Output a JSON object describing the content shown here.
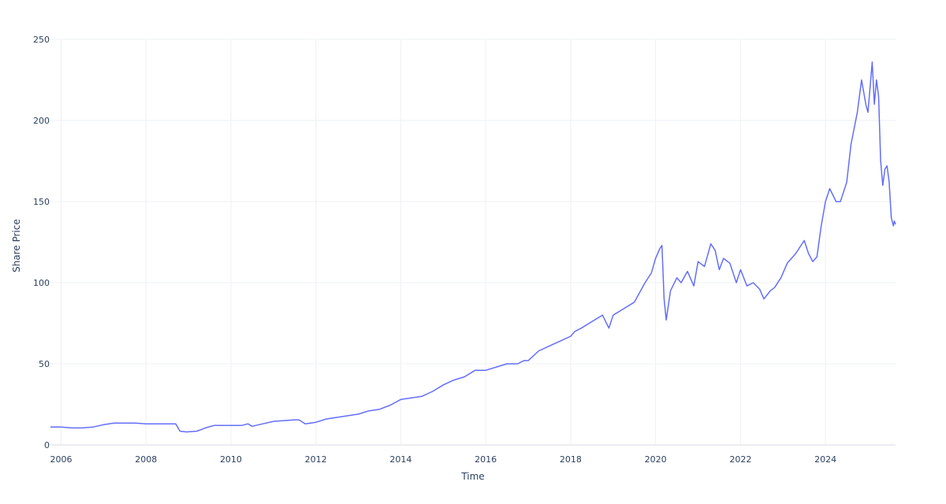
{
  "chart_data": {
    "type": "line",
    "title": "",
    "xlabel": "Time",
    "ylabel": "Share Price",
    "xlim": [
      2005.75,
      2025.65
    ],
    "ylim": [
      0,
      250
    ],
    "grid": true,
    "x_ticks": [
      2006,
      2008,
      2010,
      2012,
      2014,
      2016,
      2018,
      2020,
      2022,
      2024
    ],
    "x_tick_labels": [
      "2006",
      "2008",
      "2010",
      "2012",
      "2014",
      "2016",
      "2018",
      "2020",
      "2022",
      "2024"
    ],
    "y_ticks": [
      0,
      50,
      100,
      150,
      200,
      250
    ],
    "y_tick_labels": [
      "0",
      "50",
      "100",
      "150",
      "200",
      "250"
    ],
    "line_color": "#636efa",
    "series": [
      {
        "x": [
          2005.75,
          2006.0,
          2006.25,
          2006.5,
          2006.75,
          2007.0,
          2007.25,
          2007.5,
          2007.75,
          2008.0,
          2008.25,
          2008.5,
          2008.7,
          2008.8,
          2008.95,
          2009.2,
          2009.4,
          2009.6,
          2009.8,
          2010.0,
          2010.25,
          2010.4,
          2010.5,
          2010.75,
          2011.0,
          2011.25,
          2011.5,
          2011.6,
          2011.75,
          2012.0,
          2012.25,
          2012.5,
          2012.75,
          2013.0,
          2013.25,
          2013.5,
          2013.75,
          2014.0,
          2014.25,
          2014.5,
          2014.75,
          2015.0,
          2015.25,
          2015.5,
          2015.75,
          2016.0,
          2016.25,
          2016.5,
          2016.75,
          2016.9,
          2017.0,
          2017.25,
          2017.5,
          2017.75,
          2018.0,
          2018.1,
          2018.25,
          2018.5,
          2018.75,
          2018.9,
          2019.0,
          2019.25,
          2019.5,
          2019.75,
          2019.9,
          2020.0,
          2020.1,
          2020.15,
          2020.2,
          2020.25,
          2020.35,
          2020.5,
          2020.6,
          2020.75,
          2020.9,
          2021.0,
          2021.15,
          2021.3,
          2021.4,
          2021.5,
          2021.6,
          2021.75,
          2021.9,
          2022.0,
          2022.15,
          2022.3,
          2022.45,
          2022.55,
          2022.7,
          2022.8,
          2022.95,
          2023.1,
          2023.3,
          2023.5,
          2023.6,
          2023.7,
          2023.8,
          2023.9,
          2024.0,
          2024.1,
          2024.25,
          2024.35,
          2024.5,
          2024.6,
          2024.75,
          2024.85,
          2024.95,
          2025.0,
          2025.1,
          2025.15,
          2025.2,
          2025.25,
          2025.3,
          2025.35,
          2025.4,
          2025.45,
          2025.5,
          2025.55,
          2025.6,
          2025.62,
          2025.65
        ],
        "y": [
          11,
          11,
          10.5,
          10.5,
          11,
          12.5,
          13.5,
          13.5,
          13.5,
          13,
          13,
          13,
          13,
          8.5,
          8,
          8.5,
          10.5,
          12,
          12,
          12,
          12,
          13,
          11.5,
          13,
          14.5,
          15,
          15.5,
          15.5,
          13,
          14,
          16,
          17,
          18,
          19,
          21,
          22,
          24.5,
          28,
          29,
          30,
          33,
          37,
          40,
          42,
          46,
          46,
          48,
          50,
          50,
          52,
          52,
          58,
          61,
          64,
          67,
          70,
          72,
          76,
          80,
          72,
          80,
          84,
          88,
          100,
          106,
          115,
          121,
          123,
          90,
          77,
          95,
          103,
          100,
          107,
          98,
          113,
          110,
          124,
          120,
          108,
          115,
          112,
          100,
          108,
          98,
          100,
          96,
          90,
          95,
          97,
          103,
          112,
          118,
          126,
          118,
          113,
          116,
          135,
          150,
          158,
          150,
          150,
          162,
          185,
          205,
          225,
          210,
          205,
          236,
          210,
          225,
          215,
          175,
          160,
          170,
          172,
          162,
          140,
          135,
          138,
          136
        ]
      }
    ]
  }
}
